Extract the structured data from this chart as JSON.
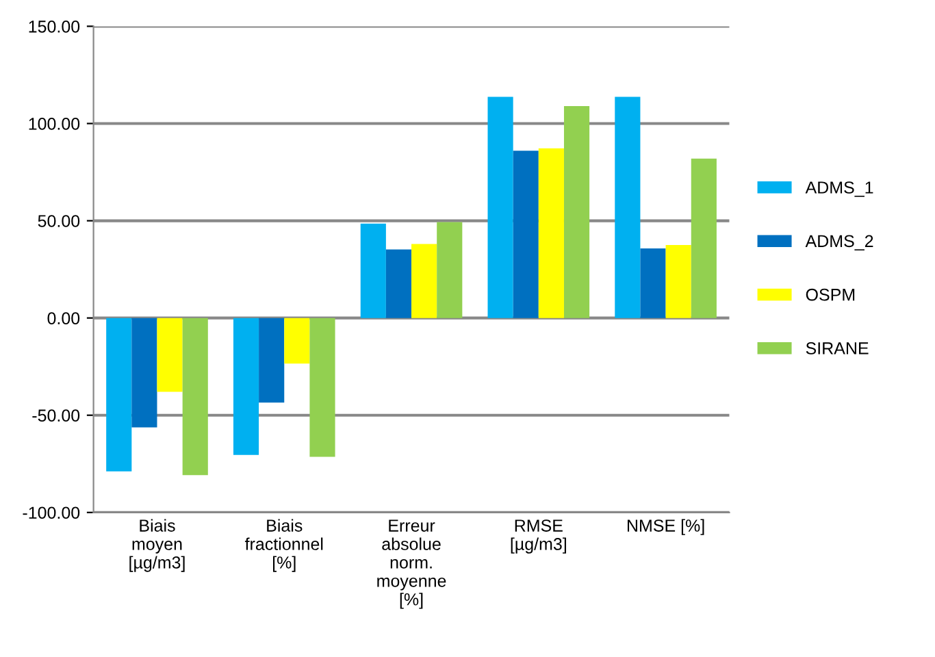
{
  "chart_data": {
    "type": "bar",
    "categories": [
      "Biais\nmoyen\n[µg/m3]",
      "Biais\nfractionnel\n[%]",
      "Erreur\nabsolue\nnorm.\nmoyenne\n[%]",
      "RMSE\n[µg/m3]",
      "NMSE [%]"
    ],
    "series": [
      {
        "name": "ADMS_1",
        "color": "#00b0f0",
        "values": [
          -78.9,
          -70.4,
          48.5,
          113.7,
          113.7
        ]
      },
      {
        "name": "ADMS_2",
        "color": "#0070c0",
        "values": [
          -56.3,
          -43.5,
          35.2,
          86.0,
          35.8
        ]
      },
      {
        "name": "OSPM",
        "color": "#ffff00",
        "values": [
          -38.0,
          -23.4,
          38.1,
          87.2,
          37.5
        ]
      },
      {
        "name": "SIRANE",
        "color": "#92d050",
        "values": [
          -80.8,
          -71.4,
          49.3,
          109.0,
          82.0
        ]
      }
    ],
    "ylim": [
      -100,
      150
    ],
    "yticks": [
      {
        "value": -100,
        "label": "-100.00"
      },
      {
        "value": -50,
        "label": "-50.00"
      },
      {
        "value": 0,
        "label": "0.00"
      },
      {
        "value": 50,
        "label": "50.00"
      },
      {
        "value": 100,
        "label": "100.00"
      },
      {
        "value": 150,
        "label": "150.00"
      }
    ],
    "grid": "y",
    "legend": "right"
  }
}
